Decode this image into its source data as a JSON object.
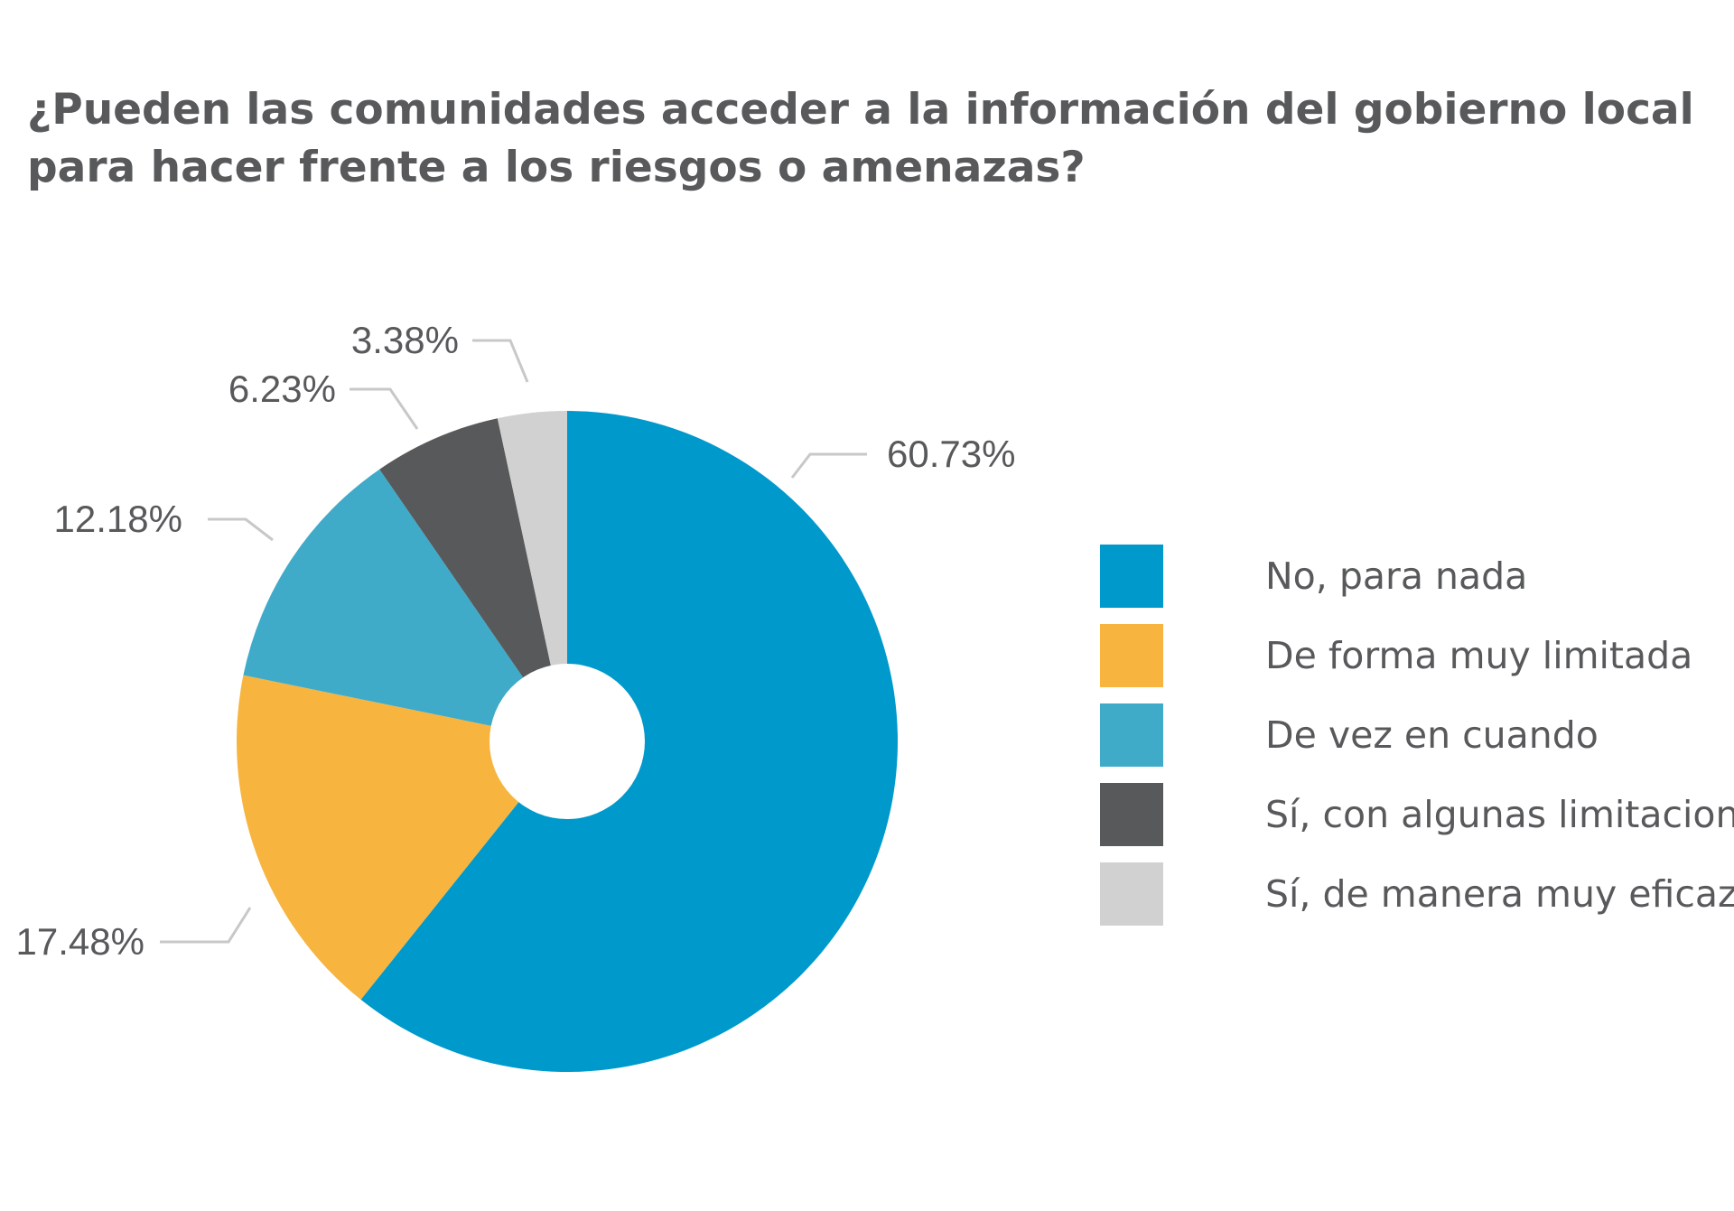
{
  "chart_data": {
    "type": "pie",
    "title": "¿Pueden las comunidades acceder a la información del gobierno local para hacer frente a los riesgos o amenazas?",
    "donut": true,
    "start_angle_deg": 0,
    "direction": "clockwise",
    "legend_position": "right",
    "categories": [
      "No, para nada",
      "De forma muy limitada",
      "De vez en cuando",
      "Sí, con algunas limitaciones",
      "Sí, de manera muy eficaz"
    ],
    "values": [
      60.73,
      17.48,
      12.18,
      6.23,
      3.38
    ],
    "value_labels": [
      "60.73%",
      "17.48%",
      "12.18%",
      "6.23%",
      "3.38%"
    ],
    "colors": [
      "#0099cc",
      "#f7b43f",
      "#3fabc9",
      "#58595b",
      "#d1d1d1"
    ]
  }
}
